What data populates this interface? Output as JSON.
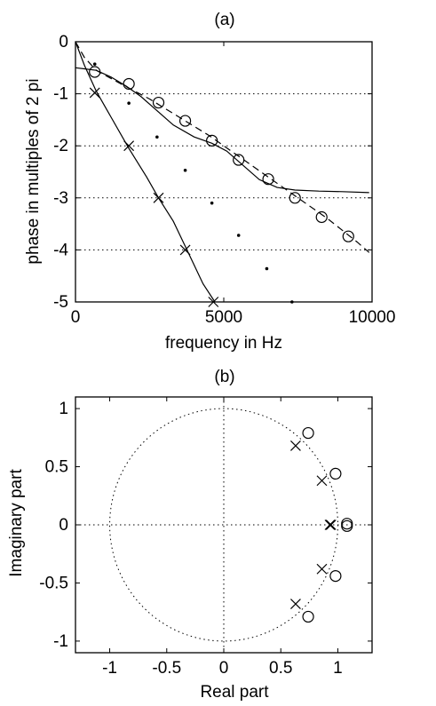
{
  "chart_data": [
    {
      "type": "line",
      "title": "(a)",
      "xlabel": "frequency in Hz",
      "ylabel": "phase in multiples of 2 pi",
      "xlim": [
        0,
        10000
      ],
      "ylim": [
        -5,
        0
      ],
      "xticks": [
        0,
        5000,
        10000
      ],
      "yticks": [
        0,
        -1,
        -2,
        -3,
        -4,
        -5
      ],
      "ytick_labels": [
        "0",
        "-1",
        "-2",
        "-3",
        "-4",
        "-5"
      ],
      "grid": "dotted horizontal lines at -1, -2, -3, -4",
      "series": [
        {
          "style": "solid",
          "x": [
            0,
            300,
            700,
            1200,
            1700,
            2200,
            2700,
            3300,
            4000,
            4600,
            5100,
            5600,
            6200,
            6800,
            7400,
            8200,
            9000,
            9900
          ],
          "y": [
            -0.5,
            -0.52,
            -0.55,
            -0.68,
            -0.85,
            -1.05,
            -1.3,
            -1.6,
            -1.83,
            -1.95,
            -2.1,
            -2.35,
            -2.65,
            -2.8,
            -2.85,
            -2.87,
            -2.88,
            -2.9
          ]
        },
        {
          "style": "dashed",
          "x": [
            0,
            300,
            700,
            1500,
            2500,
            3500,
            4500,
            5500,
            6500,
            7500,
            8500,
            9500,
            9900
          ],
          "y": [
            0,
            -0.3,
            -0.55,
            -0.8,
            -1.1,
            -1.45,
            -1.8,
            -2.2,
            -2.6,
            -3.0,
            -3.4,
            -3.85,
            -4.05
          ]
        },
        {
          "style": "solid",
          "x": [
            0,
            300,
            700,
            1200,
            1800,
            2400,
            2800,
            3300,
            3800,
            4300,
            4700
          ],
          "y": [
            0,
            -0.45,
            -0.95,
            -1.45,
            -2.05,
            -2.6,
            -3.0,
            -3.45,
            -4.05,
            -4.65,
            -5.0
          ]
        },
        {
          "marker": "circle",
          "x": [
            650,
            1800,
            2800,
            3700,
            4600,
            5500,
            6500,
            7400,
            8300,
            9200
          ],
          "y": [
            -0.58,
            -0.81,
            -1.17,
            -1.52,
            -1.9,
            -2.27,
            -2.64,
            -3.0,
            -3.37,
            -3.74
          ]
        },
        {
          "marker": "cross",
          "x": [
            650,
            1800,
            2800,
            3700,
            4650
          ],
          "y": [
            -0.98,
            -2.0,
            -3.0,
            -4.0,
            -5.0
          ]
        },
        {
          "marker": "dot",
          "x": [
            650,
            1800,
            2750,
            3700,
            4600,
            5500,
            6450,
            7300
          ],
          "y": [
            -0.43,
            -1.18,
            -1.83,
            -2.47,
            -3.1,
            -3.72,
            -4.36,
            -5.0
          ]
        }
      ]
    },
    {
      "type": "scatter",
      "title": "(b)",
      "xlabel": "Real part",
      "ylabel": "Imaginary part",
      "xlim": [
        -1.3,
        1.3
      ],
      "ylim": [
        -1.1,
        1.1
      ],
      "xticks": [
        -1,
        -0.5,
        0,
        0.5,
        1
      ],
      "xtick_labels": [
        "-1",
        "-0.5",
        "0",
        "0.5",
        "1"
      ],
      "yticks": [
        1,
        0.5,
        0,
        -0.5,
        -1
      ],
      "ytick_labels": [
        "1",
        "0.5",
        "0",
        "-0.5",
        "-1"
      ],
      "unit_circle": "dotted",
      "axes_lines": "dotted at x=0 and y=0",
      "series": [
        {
          "marker": "circle",
          "x": [
            0.74,
            0.98,
            1.08,
            1.08,
            0.98,
            0.74
          ],
          "y": [
            0.79,
            0.44,
            0.01,
            -0.01,
            -0.44,
            -0.79
          ]
        },
        {
          "marker": "cross",
          "x": [
            0.63,
            0.86,
            0.93,
            0.94,
            0.86,
            0.63
          ],
          "y": [
            0.68,
            0.38,
            0.0,
            0.0,
            -0.38,
            -0.68
          ]
        }
      ]
    }
  ]
}
